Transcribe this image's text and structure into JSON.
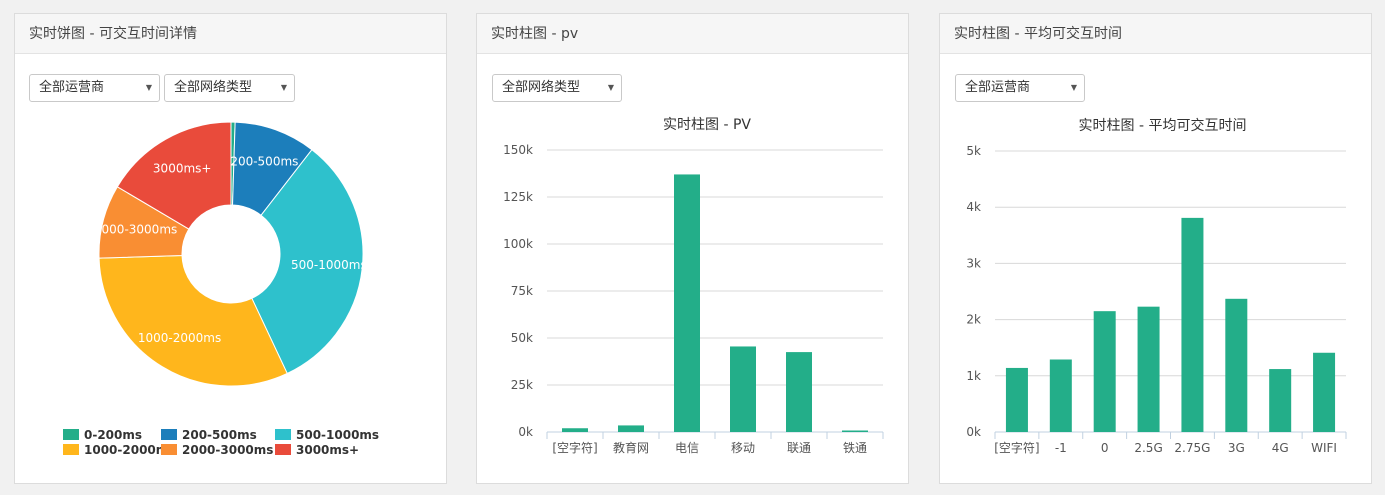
{
  "panels": [
    {
      "title": "实时饼图 - 可交互时间详情",
      "selects": [
        "全部运营商",
        "全部网络类型"
      ]
    },
    {
      "title": "实时柱图 - pv",
      "selects": [
        "全部网络类型"
      ]
    },
    {
      "title": "实时柱图 - 平均可交互时间",
      "selects": [
        "全部运营商"
      ]
    }
  ],
  "chart_data": [
    {
      "type": "pie",
      "categories": [
        "0-200ms",
        "200-500ms",
        "500-1000ms",
        "1000-2000ms",
        "2000-3000ms",
        "3000ms+"
      ],
      "values": [
        0.5,
        10,
        32.5,
        31.5,
        9,
        16.5
      ],
      "colors": [
        "#23ae89",
        "#1c7ebb",
        "#2ec1cc",
        "#ffb61c",
        "#f98e33",
        "#e94b3b"
      ],
      "legend": "bottom"
    },
    {
      "type": "bar",
      "title": "实时柱图 - PV",
      "categories": [
        "[空字符]",
        "教育网",
        "电信",
        "移动",
        "联通",
        "铁通"
      ],
      "values": [
        2000,
        3500,
        137000,
        45500,
        42500,
        800
      ],
      "ylim": [
        0,
        150000
      ],
      "yticks": [
        "0k",
        "25k",
        "50k",
        "75k",
        "100k",
        "125k",
        "150k"
      ],
      "color": "#23ae89",
      "grid": true
    },
    {
      "type": "bar",
      "title": "实时柱图 - 平均可交互时间",
      "categories": [
        "[空字符]",
        "-1",
        "0",
        "2.5G",
        "2.75G",
        "3G",
        "4G",
        "WIFI"
      ],
      "values": [
        1140,
        1290,
        2150,
        2230,
        3810,
        2370,
        1120,
        1410
      ],
      "ylim": [
        0,
        5000
      ],
      "yticks": [
        "0k",
        "1k",
        "2k",
        "3k",
        "4k",
        "5k"
      ],
      "color": "#23ae89",
      "grid": true
    }
  ]
}
